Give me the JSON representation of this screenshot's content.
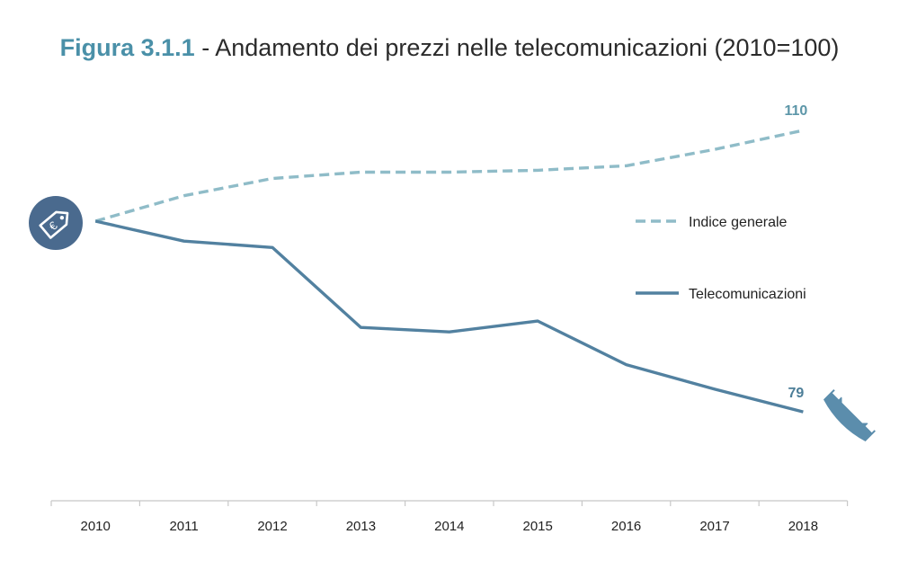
{
  "title": {
    "figure_number": "Figura 3.1.1",
    "text": " - Andamento dei prezzi nelle telecomunicazioni (2010=100)"
  },
  "icons": {
    "start": "price-tag-icon",
    "end": "telephone-icon"
  },
  "chart_data": {
    "type": "line",
    "categories": [
      "2010",
      "2011",
      "2012",
      "2013",
      "2014",
      "2015",
      "2016",
      "2017",
      "2018"
    ],
    "series": [
      {
        "name": "Indice generale",
        "values": [
          100,
          102.8,
          104.7,
          105.4,
          105.4,
          105.6,
          106.1,
          107.9,
          110
        ],
        "style": "dashed",
        "color": "#8fbcc8"
      },
      {
        "name": "Telecomunicazioni",
        "values": [
          100,
          97.8,
          97.1,
          88.3,
          87.8,
          89,
          84.2,
          81.5,
          79
        ],
        "style": "solid",
        "color": "#5281a0"
      }
    ],
    "data_labels": [
      {
        "series": "Indice generale",
        "category": "2018",
        "text": "110"
      },
      {
        "series": "Telecomunicazioni",
        "category": "2018",
        "text": "79"
      }
    ],
    "ylim": [
      70,
      118
    ],
    "legend_position": "right",
    "grid": false,
    "xlabel": "",
    "ylabel": ""
  }
}
